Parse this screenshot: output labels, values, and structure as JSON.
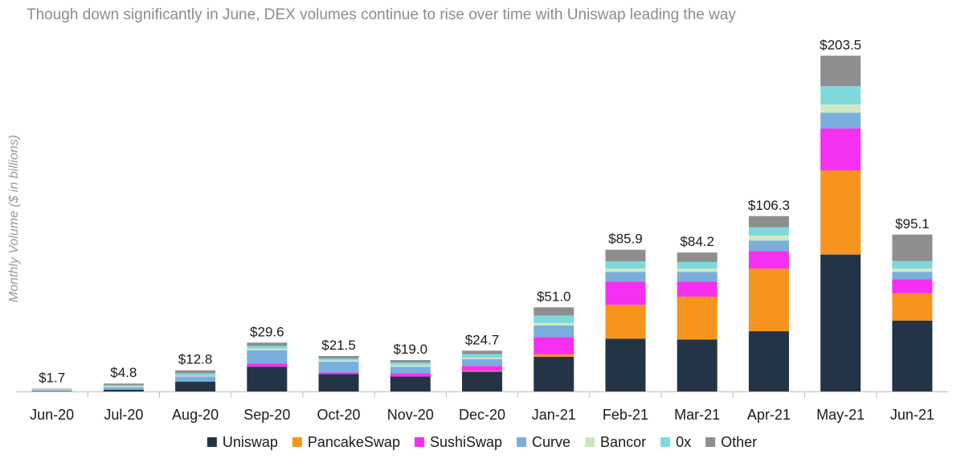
{
  "chart_data": {
    "type": "bar",
    "stacked": true,
    "subtitle": "Though down significantly in June, DEX volumes continue to rise over time with Uniswap leading the way",
    "ylabel": "Monthly Volume ($ in billions)",
    "ylim": [
      0,
      210
    ],
    "grid": false,
    "legend_position": "bottom",
    "categories": [
      "Jun-20",
      "Jul-20",
      "Aug-20",
      "Sep-20",
      "Oct-20",
      "Nov-20",
      "Dec-20",
      "Jan-21",
      "Feb-21",
      "Mar-21",
      "Apr-21",
      "May-21",
      "Jun-21"
    ],
    "totals": [
      1.7,
      4.8,
      12.8,
      29.6,
      21.5,
      19.0,
      24.7,
      51.0,
      85.9,
      84.2,
      106.3,
      203.5,
      95.1
    ],
    "total_labels": [
      "$1.7",
      "$4.8",
      "$12.8",
      "$29.6",
      "$21.5",
      "$19.0",
      "$24.7",
      "$51.0",
      "$85.9",
      "$84.2",
      "$106.3",
      "$203.5",
      "$95.1"
    ],
    "series": [
      {
        "name": "Uniswap",
        "color": "#243447",
        "values": [
          0.2,
          1.0,
          6.0,
          15.0,
          10.5,
          9.0,
          12.0,
          21.0,
          32.0,
          31.5,
          36.5,
          83.0,
          43.0
        ]
      },
      {
        "name": "PancakeSwap",
        "color": "#f7941d",
        "values": [
          0.0,
          0.0,
          0.0,
          0.0,
          0.0,
          0.0,
          0.5,
          1.5,
          20.5,
          26.0,
          38.0,
          51.0,
          16.5
        ]
      },
      {
        "name": "SushiSwap",
        "color": "#f530f0",
        "values": [
          0.0,
          0.0,
          0.0,
          2.0,
          1.0,
          2.0,
          3.0,
          10.5,
          14.0,
          9.0,
          10.5,
          25.5,
          8.5
        ]
      },
      {
        "name": "Curve",
        "color": "#7aaedc",
        "values": [
          0.5,
          1.5,
          3.0,
          8.0,
          6.5,
          4.0,
          4.0,
          7.0,
          6.0,
          6.0,
          6.5,
          9.5,
          4.5
        ]
      },
      {
        "name": "Bancor",
        "color": "#cfe8c2",
        "values": [
          0.3,
          0.5,
          0.5,
          1.0,
          0.8,
          1.0,
          1.0,
          1.5,
          2.0,
          2.0,
          3.0,
          5.0,
          2.0
        ]
      },
      {
        "name": "0x",
        "color": "#7fd8dc",
        "values": [
          0.5,
          0.8,
          1.5,
          1.6,
          1.2,
          1.5,
          2.2,
          4.5,
          4.4,
          4.0,
          5.0,
          11.0,
          4.5
        ]
      },
      {
        "name": "Other",
        "color": "#8e8e8e",
        "values": [
          0.2,
          1.0,
          1.8,
          2.0,
          1.5,
          1.5,
          2.0,
          5.0,
          7.0,
          5.7,
          6.8,
          18.5,
          16.1
        ]
      }
    ]
  }
}
